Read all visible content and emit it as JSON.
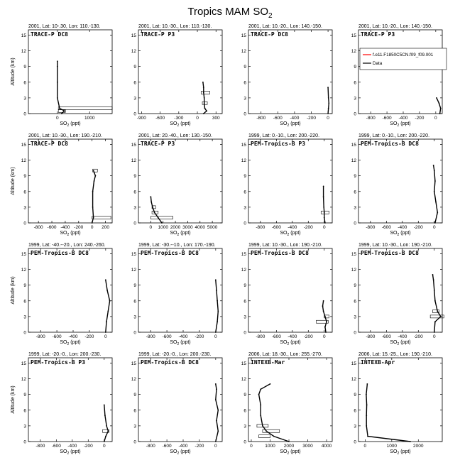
{
  "page": {
    "title_main": "Tropics MAM SO",
    "title_sub": "2"
  },
  "legend": {
    "model_label": "f.e11.F1850C5CN.f09_f09.001",
    "data_label": "Data",
    "model_color": "#ff0000",
    "data_color": "#000000"
  },
  "axis_text": {
    "ylabel": "Altitude (km)",
    "xlabel_main": "SO",
    "xlabel_sub": "2",
    "xlabel_unit": " (ppt)"
  },
  "chart_data": [
    {
      "type": "line",
      "header": "2001, Lat: 10-.30, Lon: 110.-130.",
      "campaign": "TRACE-P DC8",
      "xlim": [
        -900,
        1700
      ],
      "xticks": [
        0,
        1000
      ],
      "ylim": [
        0,
        16
      ],
      "yticks": [
        0,
        3,
        6,
        9,
        12,
        15
      ],
      "series": [
        {
          "name": "Data",
          "points": [
            [
              130,
              0
            ],
            [
              220,
              0.5
            ],
            [
              70,
              1
            ],
            [
              0,
              3
            ],
            [
              0,
              6
            ],
            [
              0,
              9
            ],
            [
              0,
              10
            ]
          ]
        }
      ],
      "boxes": [
        [
          30,
          1700,
          1
        ],
        [
          30,
          250,
          0.5
        ]
      ]
    },
    {
      "type": "line",
      "header": "2001, Lat: 10.-30., Lon: 110.-130.",
      "campaign": "TRACE-P P3",
      "xlim": [
        -950,
        400
      ],
      "xticks": [
        -900,
        -600,
        -300,
        0,
        300
      ],
      "ylim": [
        0,
        16
      ],
      "yticks": [
        0,
        3,
        6,
        9,
        12,
        15
      ],
      "series": [
        {
          "name": "Data",
          "points": [
            [
              100,
              0
            ],
            [
              150,
              0.5
            ],
            [
              120,
              1
            ],
            [
              110,
              2
            ],
            [
              110,
              3
            ],
            [
              100,
              4
            ],
            [
              100,
              5
            ],
            [
              90,
              6
            ]
          ]
        }
      ],
      "boxes": [
        [
          60,
          200,
          4
        ],
        [
          80,
          160,
          2
        ]
      ]
    },
    {
      "type": "line",
      "header": "2001, Lat: 10.-20., Lon: 140.-150.",
      "campaign": "TRACE-P DC8",
      "xlim": [
        -950,
        50
      ],
      "xticks": [
        -800,
        -600,
        -400,
        -200,
        0
      ],
      "ylim": [
        0,
        16
      ],
      "yticks": [
        0,
        3,
        6,
        9,
        12,
        15
      ],
      "series": [
        {
          "name": "Data",
          "points": [
            [
              0,
              0
            ],
            [
              5,
              1
            ],
            [
              10,
              2
            ],
            [
              5,
              3
            ],
            [
              0,
              5
            ]
          ]
        }
      ],
      "boxes": []
    },
    {
      "type": "line",
      "header": "2001, Lat: 10.-20., Lon: 140.-150.",
      "campaign": "TRACE-P P3",
      "xlim": [
        -950,
        80
      ],
      "xticks": [
        -800,
        -600,
        -400,
        -200,
        0
      ],
      "ylim": [
        0,
        16
      ],
      "yticks": [
        0,
        3,
        6,
        9,
        12,
        15
      ],
      "series": [
        {
          "name": "Data",
          "points": [
            [
              50,
              0
            ],
            [
              60,
              1
            ],
            [
              40,
              2
            ],
            [
              10,
              3
            ]
          ]
        }
      ],
      "boxes": [],
      "legend": true
    },
    {
      "type": "line",
      "header": "2001, Lat: 10.-30., Lon: 190.-210.",
      "campaign": "TRACE-P DC8",
      "xlim": [
        -950,
        300
      ],
      "xticks": [
        -800,
        -600,
        -400,
        -200,
        0,
        200
      ],
      "ylim": [
        0,
        16
      ],
      "yticks": [
        0,
        3,
        6,
        9,
        12,
        15
      ],
      "series": [
        {
          "name": "Data",
          "points": [
            [
              0,
              0
            ],
            [
              20,
              1
            ],
            [
              10,
              3
            ],
            [
              10,
              6
            ],
            [
              30,
              8
            ],
            [
              50,
              9
            ],
            [
              20,
              10
            ]
          ]
        }
      ],
      "boxes": [
        [
          0,
          280,
          1
        ],
        [
          10,
          80,
          10
        ]
      ]
    },
    {
      "type": "line",
      "header": "2001, Lat: 20.-40., Lon: 130.-150.",
      "campaign": "TRACE-P P3",
      "xlim": [
        -1000,
        5800
      ],
      "xticks": [
        0,
        1000,
        2000,
        3000,
        4000,
        5000
      ],
      "ylim": [
        0,
        16
      ],
      "yticks": [
        0,
        3,
        6,
        9,
        12,
        15
      ],
      "series": [
        {
          "name": "Data",
          "points": [
            [
              900,
              0
            ],
            [
              600,
              1
            ],
            [
              300,
              2
            ],
            [
              150,
              3
            ],
            [
              50,
              4
            ],
            [
              0,
              5
            ]
          ]
        }
      ],
      "boxes": [
        [
          0,
          1800,
          1
        ],
        [
          100,
          600,
          2
        ],
        [
          100,
          400,
          3
        ]
      ]
    },
    {
      "type": "line",
      "header": "1999, Lat: 0.-10., Lon: 200.-220.",
      "campaign": "PEM-Tropics-B P3",
      "xlim": [
        -950,
        100
      ],
      "xticks": [
        -800,
        -600,
        -400,
        -200,
        0
      ],
      "ylim": [
        0,
        16
      ],
      "yticks": [
        0,
        3,
        6,
        9,
        12,
        15
      ],
      "series": [
        {
          "name": "Data",
          "points": [
            [
              10,
              0
            ],
            [
              0,
              1
            ],
            [
              0,
              2
            ],
            [
              -5,
              3
            ],
            [
              -10,
              5
            ],
            [
              -10,
              7
            ]
          ]
        }
      ],
      "boxes": [
        [
          -40,
          60,
          2
        ]
      ]
    },
    {
      "type": "line",
      "header": "1999, Lat: 0.-10., Lon: 200.-220.",
      "campaign": "PEM-Tropics-B DC8",
      "xlim": [
        -950,
        100
      ],
      "xticks": [
        -800,
        -600,
        -400,
        -200,
        0
      ],
      "ylim": [
        0,
        16
      ],
      "yticks": [
        0,
        3,
        6,
        9,
        12,
        15
      ],
      "series": [
        {
          "name": "Data",
          "points": [
            [
              10,
              0
            ],
            [
              40,
              2
            ],
            [
              20,
              4
            ],
            [
              0,
              6
            ],
            [
              10,
              8
            ],
            [
              0,
              10
            ],
            [
              -10,
              11
            ]
          ]
        }
      ],
      "boxes": []
    },
    {
      "type": "line",
      "header": "1999, Lat: -40.--20., Lon: 240.-260.",
      "campaign": "PEM-Tropics-B DC8",
      "xlim": [
        -950,
        80
      ],
      "xticks": [
        -800,
        -600,
        -400,
        -200,
        0
      ],
      "ylim": [
        0,
        16
      ],
      "yticks": [
        0,
        3,
        6,
        9,
        12,
        15
      ],
      "series": [
        {
          "name": "Data",
          "points": [
            [
              0,
              0
            ],
            [
              10,
              2
            ],
            [
              30,
              4
            ],
            [
              50,
              6
            ],
            [
              20,
              8
            ],
            [
              0,
              10
            ]
          ]
        }
      ],
      "boxes": []
    },
    {
      "type": "line",
      "header": "1999, Lat: -30.--10., Lon: 170.-190.",
      "campaign": "PEM-Tropics-B DC8",
      "xlim": [
        -950,
        80
      ],
      "xticks": [
        -800,
        -600,
        -400,
        -200,
        0
      ],
      "ylim": [
        0,
        16
      ],
      "yticks": [
        0,
        3,
        6,
        9,
        12,
        15
      ],
      "series": [
        {
          "name": "Data",
          "points": [
            [
              0,
              0
            ],
            [
              20,
              2
            ],
            [
              30,
              4
            ],
            [
              20,
              6
            ],
            [
              10,
              8
            ],
            [
              0,
              10
            ]
          ]
        }
      ],
      "boxes": []
    },
    {
      "type": "line",
      "header": "1999, Lat: 10.-30., Lon: 190.-210.",
      "campaign": "PEM-Tropics-B DC8",
      "xlim": [
        -950,
        100
      ],
      "xticks": [
        -800,
        -600,
        -400,
        -200,
        0
      ],
      "ylim": [
        0,
        16
      ],
      "yticks": [
        0,
        3,
        6,
        9,
        12,
        15
      ],
      "series": [
        {
          "name": "Data",
          "points": [
            [
              20,
              0
            ],
            [
              10,
              1
            ],
            [
              30,
              2
            ],
            [
              10,
              3
            ],
            [
              -10,
              4
            ],
            [
              -20,
              5
            ],
            [
              -10,
              6
            ]
          ]
        }
      ],
      "boxes": [
        [
          -100,
          50,
          2
        ],
        [
          0,
          60,
          3
        ]
      ]
    },
    {
      "type": "line",
      "header": "1999, Lat: 10.-30., Lon: 190.-210.",
      "campaign": "PEM-Tropics-B DC8",
      "xlim": [
        -950,
        100
      ],
      "xticks": [
        -800,
        -600,
        -400,
        -200,
        0
      ],
      "ylim": [
        0,
        16
      ],
      "yticks": [
        0,
        3,
        6,
        9,
        12,
        15
      ],
      "series": [
        {
          "name": "Data",
          "points": [
            [
              0,
              0
            ],
            [
              10,
              2
            ],
            [
              80,
              3
            ],
            [
              40,
              4
            ],
            [
              10,
              6
            ],
            [
              0,
              8
            ],
            [
              -10,
              10
            ],
            [
              -20,
              11
            ]
          ]
        }
      ],
      "boxes": [
        [
          -50,
          120,
          3
        ],
        [
          -20,
          60,
          4
        ]
      ]
    },
    {
      "type": "line",
      "header": "1999, Lat: -20.-0., Lon: 200.-230.",
      "campaign": "PEM-Tropics-B P3",
      "xlim": [
        -950,
        100
      ],
      "xticks": [
        -800,
        -600,
        -400,
        -200,
        0
      ],
      "ylim": [
        0,
        16
      ],
      "yticks": [
        0,
        3,
        6,
        9,
        12,
        15
      ],
      "series": [
        {
          "name": "Data",
          "points": [
            [
              0,
              0
            ],
            [
              20,
              1
            ],
            [
              50,
              2
            ],
            [
              30,
              3
            ],
            [
              10,
              5
            ],
            [
              0,
              7
            ]
          ]
        }
      ],
      "boxes": [
        [
          -20,
          60,
          2
        ]
      ]
    },
    {
      "type": "line",
      "header": "1999, Lat: -20.-0., Lon: 200.-230.",
      "campaign": "PEM-Tropics-B DC8",
      "xlim": [
        -950,
        80
      ],
      "xticks": [
        -800,
        -600,
        -400,
        -200,
        0
      ],
      "ylim": [
        0,
        16
      ],
      "yticks": [
        0,
        3,
        6,
        9,
        12,
        15
      ],
      "series": [
        {
          "name": "Data",
          "points": [
            [
              0,
              0
            ],
            [
              30,
              2
            ],
            [
              10,
              4
            ],
            [
              30,
              6
            ],
            [
              0,
              8
            ],
            [
              10,
              10
            ],
            [
              0,
              11
            ]
          ]
        }
      ],
      "boxes": []
    },
    {
      "type": "line",
      "header": "2006, Lat: 18.-30., Lon: 255.-270.",
      "campaign": "INTEXB-Mar",
      "xlim": [
        -150,
        4300
      ],
      "xticks": [
        0,
        1000,
        2000,
        3000,
        4000
      ],
      "ylim": [
        0,
        16
      ],
      "yticks": [
        0,
        3,
        6,
        9,
        12,
        15
      ],
      "series": [
        {
          "name": "Data",
          "points": [
            [
              2000,
              0
            ],
            [
              1200,
              1
            ],
            [
              800,
              2
            ],
            [
              600,
              3
            ],
            [
              500,
              5
            ],
            [
              500,
              7
            ],
            [
              400,
              9
            ],
            [
              500,
              10
            ],
            [
              1000,
              11
            ]
          ]
        }
      ],
      "boxes": [
        [
          600,
          1500,
          2
        ],
        [
          400,
          1000,
          1
        ],
        [
          300,
          900,
          3
        ]
      ]
    },
    {
      "type": "line",
      "header": "2006, Lat: 15.-25., Lon: 190.-210.",
      "campaign": "INTEXB-Apr",
      "xlim": [
        -250,
        2900
      ],
      "xticks": [
        0,
        1000,
        2000
      ],
      "ylim": [
        0,
        16
      ],
      "yticks": [
        0,
        3,
        6,
        9,
        12,
        15
      ],
      "series": [
        {
          "name": "Data",
          "points": [
            [
              1700,
              0
            ],
            [
              100,
              1
            ],
            [
              50,
              3
            ],
            [
              50,
              5
            ],
            [
              60,
              7
            ],
            [
              40,
              9
            ],
            [
              80,
              11
            ]
          ]
        }
      ],
      "boxes": []
    }
  ]
}
